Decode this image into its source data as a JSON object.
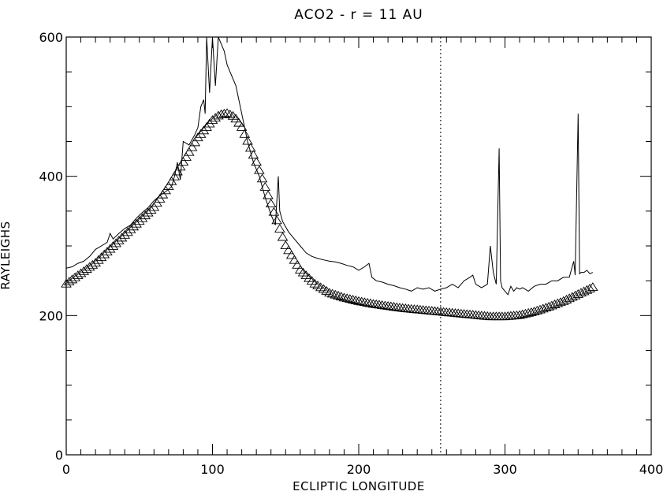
{
  "chart_data": {
    "type": "line",
    "title": "ACO2 - r = 11 AU",
    "xlabel": "ECLIPTIC LONGITUDE",
    "ylabel": "RAYLEIGHS",
    "xlim": [
      0,
      400
    ],
    "ylim": [
      0,
      600
    ],
    "x_ticks": [
      0,
      100,
      200,
      300,
      400
    ],
    "y_ticks": [
      0,
      200,
      400,
      600
    ],
    "x_tick_labels": [
      "0",
      "100",
      "200",
      "300",
      "400"
    ],
    "y_tick_labels": [
      "0",
      "200",
      "400",
      "600"
    ],
    "grid": false,
    "legend": "none",
    "vline": {
      "x": 256,
      "style": "dotted"
    },
    "series": [
      {
        "style": "solid-line",
        "x": [
          0,
          4,
          8,
          12,
          16,
          20,
          24,
          28,
          30,
          32,
          36,
          40,
          44,
          48,
          52,
          56,
          60,
          64,
          68,
          72,
          74,
          76,
          78,
          80,
          84,
          88,
          90,
          92,
          94,
          95,
          96,
          98,
          100,
          102,
          104,
          106,
          108,
          110,
          112,
          114,
          116,
          118,
          120,
          124,
          128,
          132,
          136,
          140,
          143,
          145,
          146,
          148,
          152,
          156,
          160,
          164,
          168,
          172,
          176,
          180,
          184,
          188,
          192,
          196,
          200,
          204,
          207,
          209,
          212,
          216,
          220,
          224,
          228,
          232,
          236,
          240,
          244,
          248,
          252,
          256,
          260,
          264,
          268,
          272,
          276,
          278,
          280,
          284,
          288,
          290,
          292,
          294,
          296,
          297,
          298,
          300,
          302,
          304,
          306,
          308,
          310,
          312,
          316,
          320,
          324,
          328,
          332,
          336,
          340,
          344,
          347,
          348,
          350,
          351,
          352,
          354,
          356,
          358,
          360
        ],
        "y": [
          268,
          270,
          275,
          278,
          285,
          295,
          300,
          305,
          318,
          310,
          318,
          325,
          330,
          340,
          348,
          355,
          365,
          372,
          378,
          385,
          400,
          420,
          395,
          450,
          445,
          460,
          470,
          500,
          510,
          490,
          600,
          520,
          600,
          530,
          600,
          590,
          580,
          560,
          550,
          540,
          530,
          510,
          490,
          450,
          420,
          400,
          370,
          345,
          330,
          400,
          350,
          335,
          320,
          310,
          300,
          290,
          285,
          282,
          280,
          278,
          277,
          275,
          272,
          270,
          265,
          270,
          275,
          255,
          250,
          248,
          245,
          243,
          240,
          238,
          235,
          240,
          238,
          240,
          235,
          238,
          240,
          245,
          240,
          250,
          255,
          258,
          245,
          240,
          245,
          300,
          262,
          245,
          440,
          250,
          240,
          235,
          230,
          242,
          235,
          240,
          238,
          240,
          235,
          242,
          245,
          245,
          250,
          250,
          255,
          255,
          278,
          258,
          490,
          260,
          262,
          262,
          265,
          260,
          262
        ]
      },
      {
        "style": "triangle-markers",
        "x": [
          0,
          10,
          20,
          30,
          40,
          50,
          60,
          70,
          80,
          90,
          100,
          105,
          110,
          115,
          120,
          130,
          140,
          150,
          160,
          170,
          180,
          190,
          200,
          210,
          220,
          230,
          240,
          250,
          260,
          270,
          280,
          290,
          300,
          310,
          320,
          330,
          340,
          350,
          360
        ],
        "y": [
          245,
          260,
          275,
          295,
          315,
          335,
          355,
          385,
          420,
          455,
          480,
          488,
          490,
          485,
          470,
          420,
          360,
          300,
          265,
          245,
          232,
          225,
          220,
          216,
          213,
          210,
          208,
          206,
          204,
          202,
          200,
          198,
          198,
          200,
          205,
          212,
          220,
          230,
          240
        ]
      }
    ]
  }
}
